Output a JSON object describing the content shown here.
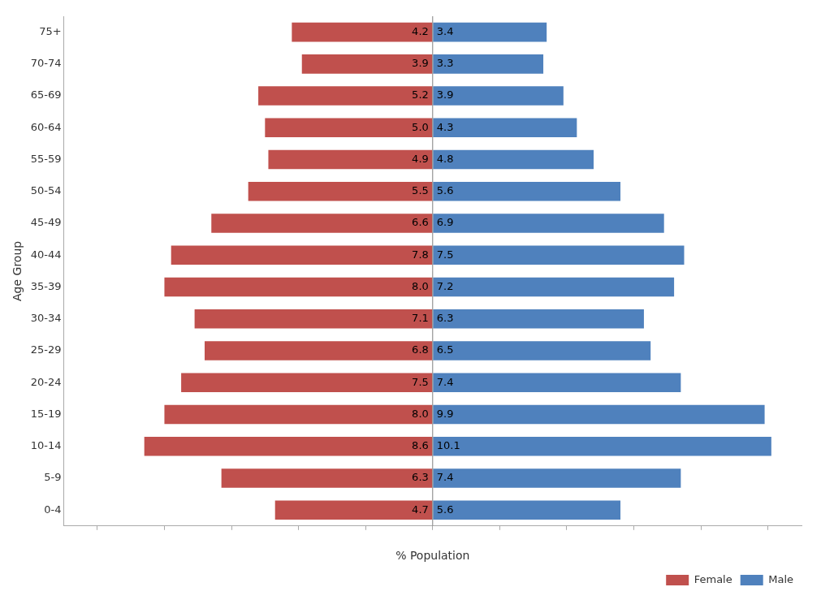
{
  "chart_data": {
    "type": "bar",
    "orientation": "horizontal",
    "xlabel": "% Population",
    "ylabel": "Age Group",
    "categories": [
      "0-4",
      "5-9",
      "10-14",
      "15-19",
      "20-24",
      "25-29",
      "30-34",
      "35-39",
      "40-44",
      "45-49",
      "50-54",
      "55-59",
      "60-64",
      "65-69",
      "70-74",
      "75+"
    ],
    "series": [
      {
        "name": "Female",
        "color": "#C0504D",
        "values": [
          4.7,
          6.3,
          8.6,
          8.0,
          7.5,
          6.8,
          7.1,
          8.0,
          7.8,
          6.6,
          5.5,
          4.9,
          5.0,
          5.2,
          3.9,
          4.2
        ],
        "value_labels": [
          "4.7",
          "6.3",
          "8.6",
          "8.0",
          "7.5",
          "6.8",
          "7.1",
          "8.0",
          "7.8",
          "6.6",
          "5.5",
          "4.9",
          "5.0",
          "5.2",
          "3.9",
          "4.2"
        ]
      },
      {
        "name": "Male",
        "color": "#4F81BD",
        "values": [
          5.6,
          7.4,
          10.1,
          9.9,
          7.4,
          6.5,
          6.3,
          7.2,
          7.5,
          6.9,
          5.6,
          4.8,
          4.3,
          3.9,
          3.3,
          3.4
        ],
        "value_labels": [
          "5.6",
          "7.4",
          "10.1",
          "9.9",
          "7.4",
          "6.5",
          "6.3",
          "7.2",
          "7.5",
          "6.9",
          "5.6",
          "4.8",
          "4.3",
          "3.9",
          "3.3",
          "3.4"
        ]
      }
    ],
    "xlim": [
      -11,
      11
    ],
    "xticks": [
      -10,
      -8,
      -6,
      -4,
      -2,
      0,
      2,
      4,
      6,
      8,
      10
    ],
    "tick_labels": "y",
    "grid": false,
    "legend": "lower right",
    "data_labels": true
  }
}
